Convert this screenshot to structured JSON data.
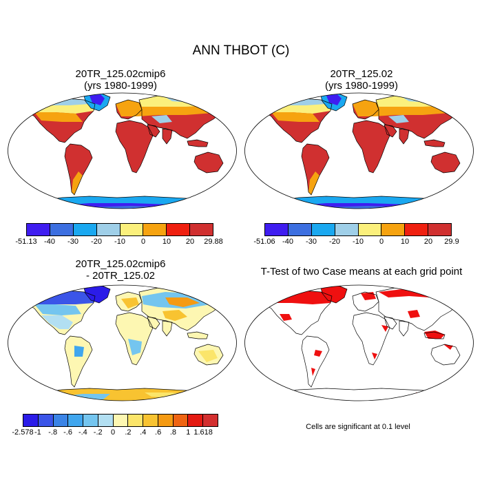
{
  "title": "ANN THBOT (C)",
  "colors": {
    "land": "#d03030",
    "ocean": "#ffffff",
    "outline": "#000000"
  },
  "panels": [
    {
      "id": "case1",
      "title_line1": "20TR_125.02cmip6",
      "title_line2": "(yrs 1980-1999)",
      "colorbar": {
        "colors": [
          "#3f1df0",
          "#3c6fe0",
          "#1aa8f0",
          "#9fcfe8",
          "#fbf07c",
          "#f6a310",
          "#ef2010",
          "#d03030"
        ],
        "labels": [
          "-51.13",
          "-40",
          "-30",
          "-20",
          "-10",
          "0",
          "10",
          "20",
          "29.88"
        ]
      }
    },
    {
      "id": "case2",
      "title_line1": "20TR_125.02",
      "title_line2": "(yrs 1980-1999)",
      "colorbar": {
        "colors": [
          "#3f1df0",
          "#3c6fe0",
          "#1aa8f0",
          "#9fcfe8",
          "#fbf07c",
          "#f6a310",
          "#ef2010",
          "#d03030"
        ],
        "labels": [
          "-51.06",
          "-40",
          "-30",
          "-20",
          "-10",
          "0",
          "10",
          "20",
          "29.9"
        ]
      }
    },
    {
      "id": "difference",
      "title_line1": "20TR_125.02cmip6",
      "title_line2": "- 20TR_125.02",
      "colorbar": {
        "colors": [
          "#2b1ce8",
          "#3b55e8",
          "#3b84e6",
          "#40a6ee",
          "#74c5ef",
          "#b2dff2",
          "#fdf7b2",
          "#fbe56a",
          "#f8c331",
          "#f59a12",
          "#ef6412",
          "#e41a12",
          "#d32f2f"
        ],
        "labels": [
          "-2.578",
          "-1",
          "-.8",
          "-.6",
          "-.4",
          "-.2",
          "0",
          ".2",
          ".4",
          ".6",
          ".8",
          "1",
          "1.618"
        ]
      }
    },
    {
      "id": "ttest",
      "title_line1": "T-Test of two Case means at each grid point",
      "title_line2": "",
      "significant_color": "#ef1010",
      "note": "Cells are significant at 0.1 level"
    }
  ]
}
